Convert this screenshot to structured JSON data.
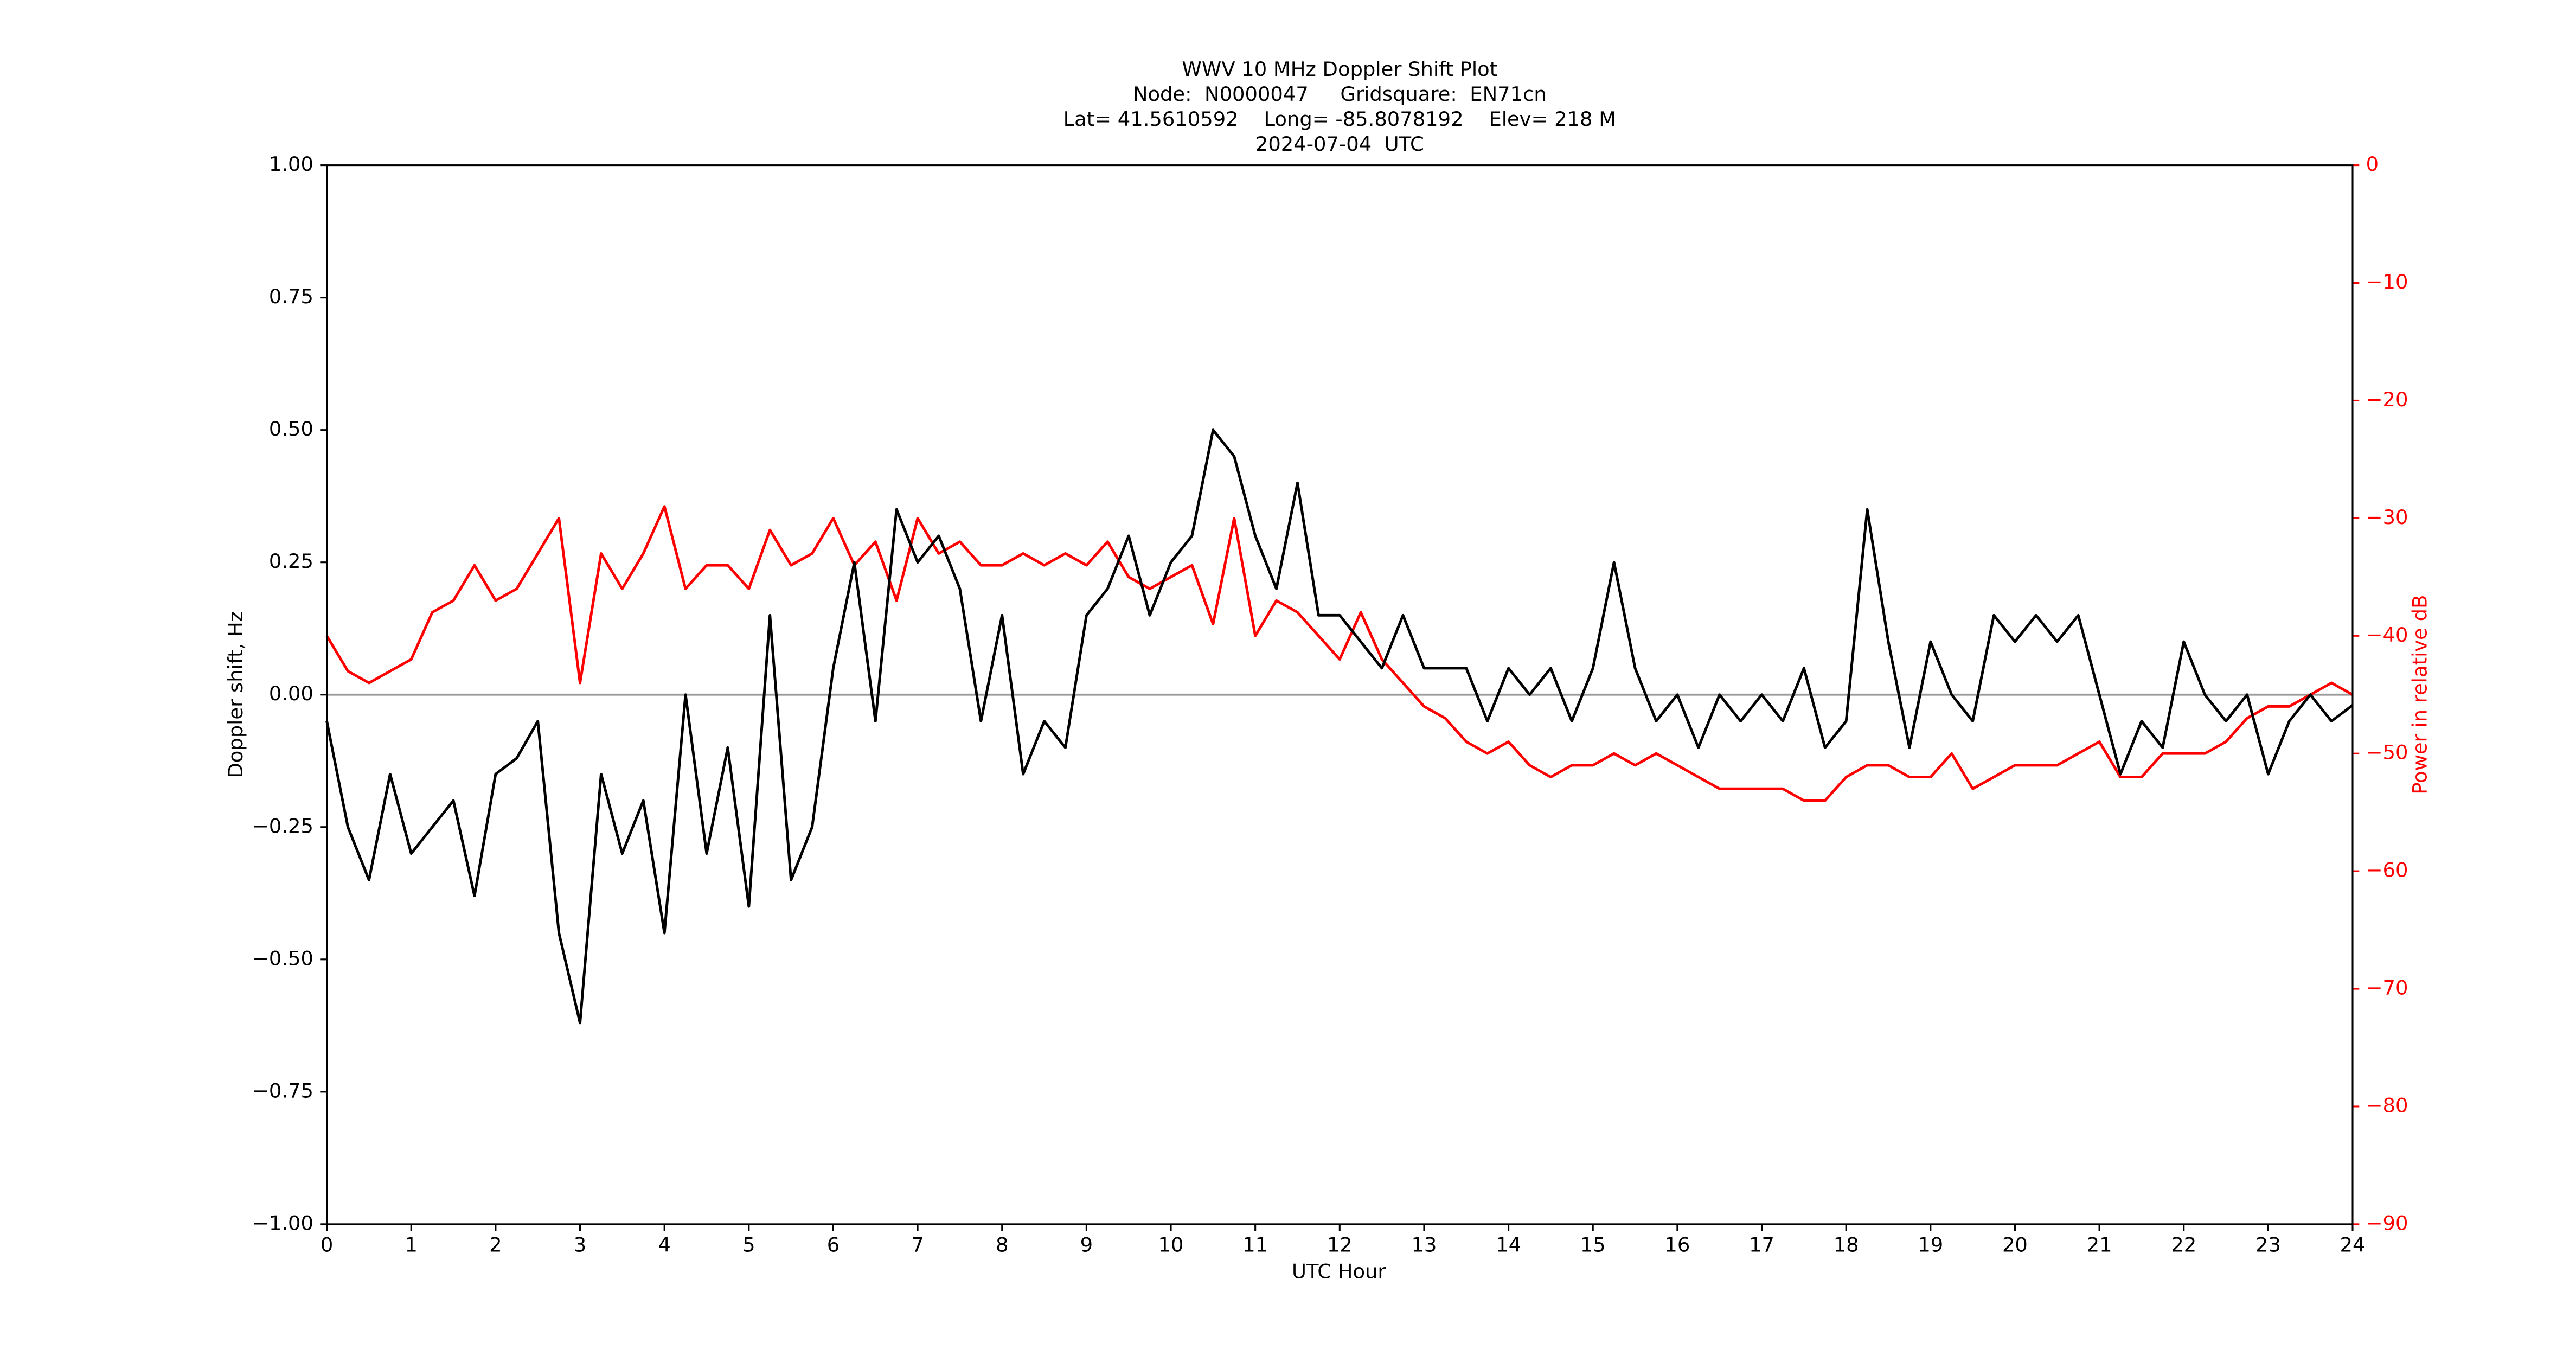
{
  "chart_data": {
    "type": "line",
    "title": [
      "WWV 10 MHz Doppler Shift Plot",
      "Node:  N0000047     Gridsquare:  EN71cn",
      "Lat= 41.5610592    Long= -85.8078192    Elev= 218 M",
      "2024-07-04  UTC"
    ],
    "xlabel": "UTC Hour",
    "ylabel": "Doppler shift, Hz",
    "y2label": "Power in relative dB",
    "xlim": [
      0,
      24
    ],
    "xticks": [
      0,
      1,
      2,
      3,
      4,
      5,
      6,
      7,
      8,
      9,
      10,
      11,
      12,
      13,
      14,
      15,
      16,
      17,
      18,
      19,
      20,
      21,
      22,
      23,
      24
    ],
    "ylim": [
      -1,
      1
    ],
    "yticks": [
      {
        "value": -1,
        "label": "−1.00"
      },
      {
        "value": -0.75,
        "label": "−0.75"
      },
      {
        "value": -0.5,
        "label": "−0.50"
      },
      {
        "value": -0.25,
        "label": "−0.25"
      },
      {
        "value": 0,
        "label": "0.00"
      },
      {
        "value": 0.25,
        "label": "0.25"
      },
      {
        "value": 0.5,
        "label": "0.50"
      },
      {
        "value": 0.75,
        "label": "0.75"
      },
      {
        "value": 1,
        "label": "1.00"
      }
    ],
    "y2lim": [
      -90,
      0
    ],
    "y2ticks": [
      {
        "value": -90,
        "label": "−90"
      },
      {
        "value": -80,
        "label": "−80"
      },
      {
        "value": -70,
        "label": "−70"
      },
      {
        "value": -60,
        "label": "−60"
      },
      {
        "value": -50,
        "label": "−50"
      },
      {
        "value": -40,
        "label": "−40"
      },
      {
        "value": -30,
        "label": "−30"
      },
      {
        "value": -20,
        "label": "−20"
      },
      {
        "value": -10,
        "label": "−10"
      },
      0
    ],
    "hline": 0,
    "hline_color": "#999999",
    "x": [
      0,
      0.25,
      0.5,
      0.75,
      1,
      1.25,
      1.5,
      1.75,
      2,
      2.25,
      2.5,
      2.75,
      3,
      3.25,
      3.5,
      3.75,
      4,
      4.25,
      4.5,
      4.75,
      5,
      5.25,
      5.5,
      5.75,
      6,
      6.25,
      6.5,
      6.75,
      7,
      7.25,
      7.5,
      7.75,
      8,
      8.25,
      8.5,
      8.75,
      9,
      9.25,
      9.5,
      9.75,
      10,
      10.25,
      10.5,
      10.75,
      11,
      11.25,
      11.5,
      11.75,
      12,
      12.25,
      12.5,
      12.75,
      13,
      13.25,
      13.5,
      13.75,
      14,
      14.25,
      14.5,
      14.75,
      15,
      15.25,
      15.5,
      15.75,
      16,
      16.25,
      16.5,
      16.75,
      17,
      17.25,
      17.5,
      17.75,
      18,
      18.25,
      18.5,
      18.75,
      19,
      19.25,
      19.5,
      19.75,
      20,
      20.25,
      20.5,
      20.75,
      21,
      21.25,
      21.5,
      21.75,
      22,
      22.25,
      22.5,
      22.75,
      23,
      23.25,
      23.5,
      23.75,
      24
    ],
    "series": [
      {
        "name": "Doppler shift",
        "color": "#000000",
        "values": [
          -0.05,
          -0.25,
          -0.35,
          -0.15,
          -0.3,
          -0.25,
          -0.2,
          -0.38,
          -0.15,
          -0.12,
          -0.05,
          -0.45,
          -0.62,
          -0.15,
          -0.3,
          -0.2,
          -0.45,
          0.0,
          -0.3,
          -0.1,
          -0.4,
          0.15,
          -0.35,
          -0.25,
          0.05,
          0.25,
          -0.05,
          0.35,
          0.25,
          0.3,
          0.2,
          -0.05,
          0.15,
          -0.15,
          -0.05,
          -0.1,
          0.15,
          0.2,
          0.3,
          0.15,
          0.25,
          0.3,
          0.5,
          0.45,
          0.3,
          0.2,
          0.4,
          0.15,
          0.15,
          0.1,
          0.05,
          0.15,
          0.05,
          0.05,
          0.05,
          -0.05,
          0.05,
          0.0,
          0.05,
          -0.05,
          0.05,
          0.25,
          0.05,
          -0.05,
          0.0,
          -0.1,
          0.0,
          -0.05,
          0.0,
          -0.05,
          0.05,
          -0.1,
          -0.05,
          0.35,
          0.1,
          -0.1,
          0.1,
          0.0,
          -0.05,
          0.15,
          0.1,
          0.15,
          0.1,
          0.15,
          0.0,
          -0.15,
          -0.05,
          -0.1,
          0.1,
          0.0,
          -0.05,
          0.0,
          -0.15,
          -0.05,
          0.0,
          -0.05,
          -0.02
        ]
      },
      {
        "name": "Power",
        "color": "#ff0000",
        "axis": "y2",
        "values": [
          -40,
          -43,
          -44,
          -43,
          -42,
          -38,
          -37,
          -34,
          -37,
          -36,
          -33,
          -30,
          -44,
          -33,
          -36,
          -33,
          -29,
          -36,
          -34,
          -34,
          -36,
          -31,
          -34,
          -33,
          -30,
          -34,
          -32,
          -37,
          -30,
          -33,
          -32,
          -34,
          -34,
          -33,
          -34,
          -33,
          -34,
          -32,
          -35,
          -36,
          -35,
          -34,
          -39,
          -30,
          -40,
          -37,
          -38,
          -40,
          -42,
          -38,
          -42,
          -44,
          -46,
          -47,
          -49,
          -50,
          -49,
          -51,
          -52,
          -51,
          -51,
          -50,
          -51,
          -50,
          -51,
          -52,
          -53,
          -53,
          -53,
          -53,
          -54,
          -54,
          -52,
          -51,
          -51,
          -52,
          -52,
          -50,
          -53,
          -52,
          -51,
          -51,
          -51,
          -50,
          -49,
          -52,
          -52,
          -50,
          -50,
          -50,
          -49,
          -47,
          -46,
          -46,
          -45,
          -44,
          -45
        ]
      }
    ]
  }
}
